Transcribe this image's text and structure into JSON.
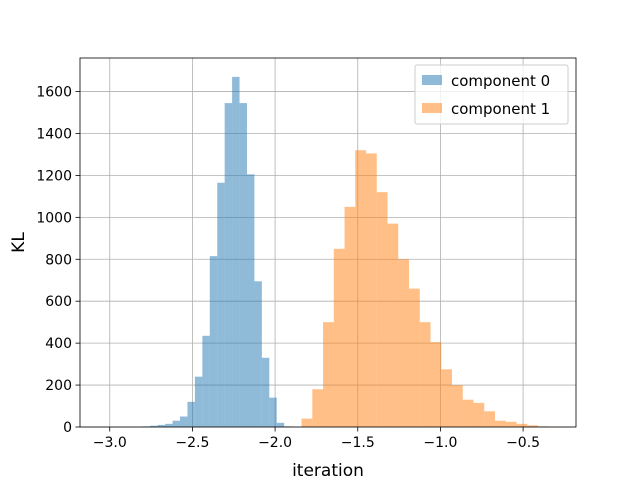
{
  "chart_data": {
    "type": "bar",
    "histogram": true,
    "xlabel": "iteration",
    "ylabel": "KL",
    "xlim": [
      -3.18,
      -0.18
    ],
    "ylim": [
      0,
      1760
    ],
    "grid": true,
    "legend_position": "top-right",
    "x_ticks": [
      -3.0,
      -2.5,
      -2.0,
      -1.5,
      -1.0,
      -0.5
    ],
    "x_tick_labels": [
      "−3.0",
      "−2.5",
      "−2.0",
      "−1.5",
      "−1.0",
      "−0.5"
    ],
    "y_ticks": [
      0,
      200,
      400,
      600,
      800,
      1000,
      1200,
      1400,
      1600
    ],
    "y_tick_labels": [
      "0",
      "200",
      "400",
      "600",
      "800",
      "1000",
      "1200",
      "1400",
      "1600"
    ],
    "series": [
      {
        "name": "component 0",
        "color": "#1f77b4",
        "opacity": 0.5,
        "bin_edges": [
          -2.8,
          -2.755,
          -2.71,
          -2.665,
          -2.62,
          -2.575,
          -2.53,
          -2.485,
          -2.44,
          -2.395,
          -2.35,
          -2.305,
          -2.26,
          -2.215,
          -2.17,
          -2.125,
          -2.08,
          -2.035,
          -1.99,
          -1.945,
          -1.9
        ],
        "counts": [
          3,
          6,
          10,
          15,
          30,
          50,
          120,
          240,
          435,
          815,
          1165,
          1545,
          1670,
          1545,
          1205,
          695,
          330,
          140,
          20,
          3
        ]
      },
      {
        "name": "component 1",
        "color": "#ff7f0e",
        "opacity": 0.5,
        "bin_edges": [
          -1.84,
          -1.775,
          -1.71,
          -1.645,
          -1.58,
          -1.515,
          -1.45,
          -1.385,
          -1.32,
          -1.255,
          -1.19,
          -1.125,
          -1.06,
          -0.995,
          -0.93,
          -0.865,
          -0.8,
          -0.735,
          -0.67,
          -0.605,
          -0.54,
          -0.475,
          -0.41,
          -0.345,
          -0.28
        ],
        "counts": [
          40,
          180,
          500,
          850,
          1050,
          1320,
          1305,
          1120,
          970,
          800,
          660,
          500,
          405,
          275,
          200,
          130,
          115,
          75,
          30,
          25,
          15,
          8,
          3,
          1
        ]
      }
    ]
  }
}
